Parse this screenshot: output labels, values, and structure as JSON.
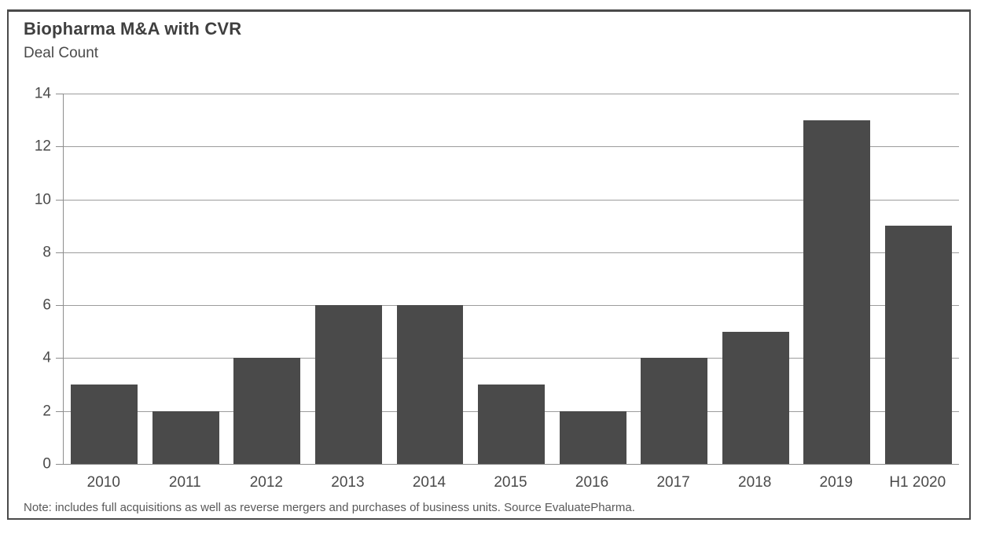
{
  "chart_data": {
    "type": "bar",
    "title": "Biopharma M&A with CVR",
    "subtitle": "Deal Count",
    "categories": [
      "2010",
      "2011",
      "2012",
      "2013",
      "2014",
      "2015",
      "2016",
      "2017",
      "2018",
      "2019",
      "H1 2020"
    ],
    "values": [
      3,
      2,
      4,
      6,
      6,
      3,
      2,
      4,
      5,
      13,
      9
    ],
    "xlabel": "",
    "ylabel": "Deal Count",
    "ylim": [
      0,
      14
    ],
    "yticks": [
      0,
      2,
      4,
      6,
      8,
      10,
      12,
      14
    ],
    "grid": true,
    "legend": false,
    "note": "Note: includes full acquisitions as well as reverse mergers and purchases of business units. Source EvaluatePharma."
  },
  "colors": {
    "bar": "#4a4a4a",
    "gridline": "#9c9c9c",
    "axis": "#8d8d8d",
    "title_text": "#3f3f3f",
    "label_text": "#4a4a4a",
    "note_text": "#595959",
    "frame_border": "#4a4a4a"
  }
}
